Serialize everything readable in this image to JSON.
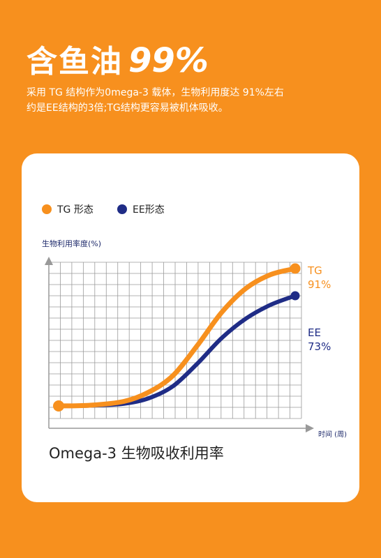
{
  "header": {
    "title": "含鱼油",
    "percent": "99%",
    "subtitle_line1": "采用 TG 结构作为0mega-3 载体，生物利用度达 91%左右",
    "subtitle_line2": "约是EE结构的3倍;TG结构更容易被机体吸收。"
  },
  "colors": {
    "background": "#F7901E",
    "tg": "#F7901E",
    "ee": "#1F2C86",
    "grid": "#9a9a9a"
  },
  "chart_data": {
    "type": "line",
    "title": "Omega-3 生物吸收利用率",
    "xlabel": "时间 (周)",
    "ylabel": "生物利用率度(%)",
    "grid": true,
    "legend_position": "top-left",
    "series": [
      {
        "name": "TG 形态",
        "color": "#F7901E",
        "end_label": "TG",
        "end_value": "91%",
        "points": [
          [
            0,
            0
          ],
          [
            2,
            0.5
          ],
          [
            4,
            3
          ],
          [
            5.5,
            9
          ],
          [
            7,
            20
          ],
          [
            8.5,
            40
          ],
          [
            10,
            62
          ],
          [
            11.5,
            78
          ],
          [
            13,
            87
          ],
          [
            14.5,
            91
          ]
        ]
      },
      {
        "name": "EE形态",
        "color": "#1F2C86",
        "end_label": "EE",
        "end_value": "73%",
        "points": [
          [
            0,
            0
          ],
          [
            2,
            0.3
          ],
          [
            4,
            1.5
          ],
          [
            5.5,
            5
          ],
          [
            7,
            13
          ],
          [
            8.5,
            28
          ],
          [
            10,
            45
          ],
          [
            11.5,
            58
          ],
          [
            13,
            67
          ],
          [
            14.5,
            73
          ]
        ]
      }
    ]
  }
}
